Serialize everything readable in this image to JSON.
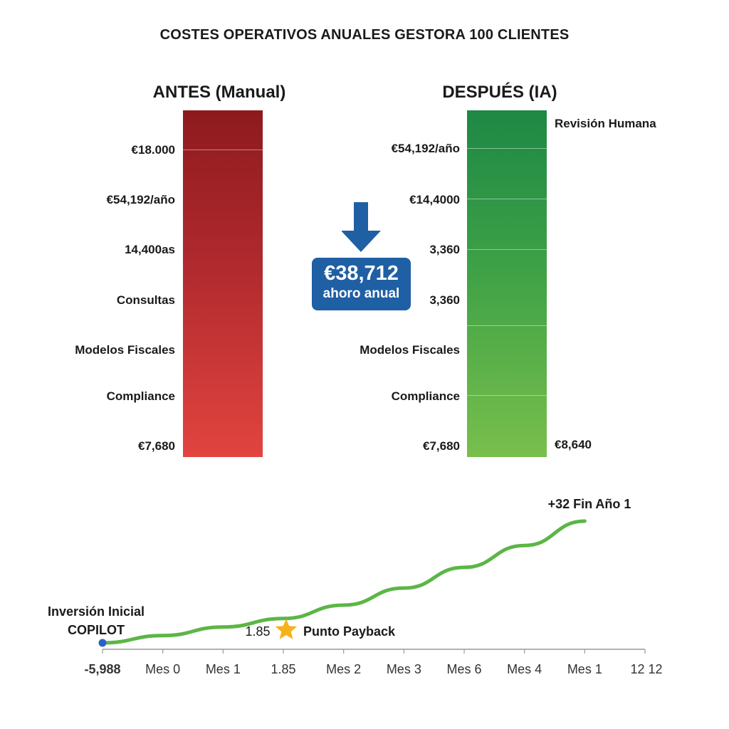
{
  "title": "COSTES OPERATIVOS ANUALES GESTORA 100 CLIENTES",
  "chart_data": [
    {
      "type": "bar",
      "title": "ANTES (Manual)",
      "labels": [
        "€18.000",
        "€54,192/año",
        "14,400as",
        "Consultas",
        "Modelos Fiscales",
        "Compliance",
        "€7,680"
      ],
      "color": "#b02a2e"
    },
    {
      "type": "bar",
      "title": "DESPUÉS (IA)",
      "labels": [
        "€54,192/año",
        "€14,4000",
        "3,360",
        "3,360",
        "Modelos Fiscales",
        "Compliance",
        "€7,680"
      ],
      "right_labels": [
        "Revisión Humana",
        "€8,640"
      ],
      "color": "#3da146"
    },
    {
      "type": "line",
      "x_ticks": [
        "-5,988",
        "Mes 0",
        "Mes 1",
        "1.85",
        "Mes 2",
        "Mes 3",
        "Mes 6",
        "Mes 4",
        "Mes 1",
        "12 12"
      ],
      "series": [
        {
          "values": [
            0,
            0.06,
            0.13,
            0.2,
            0.31,
            0.45,
            0.62,
            0.8,
            1.0
          ],
          "color": "#5cb646"
        }
      ],
      "annotations": {
        "start": "Inversión Inicial\nCOPILOT",
        "payback_value": "1.85",
        "payback_label": "Punto Payback",
        "end": "+32 Fin Año 1"
      }
    }
  ],
  "savings": {
    "amount": "€38,712",
    "label": "ahoro anual",
    "color": "#1f5fa3"
  }
}
